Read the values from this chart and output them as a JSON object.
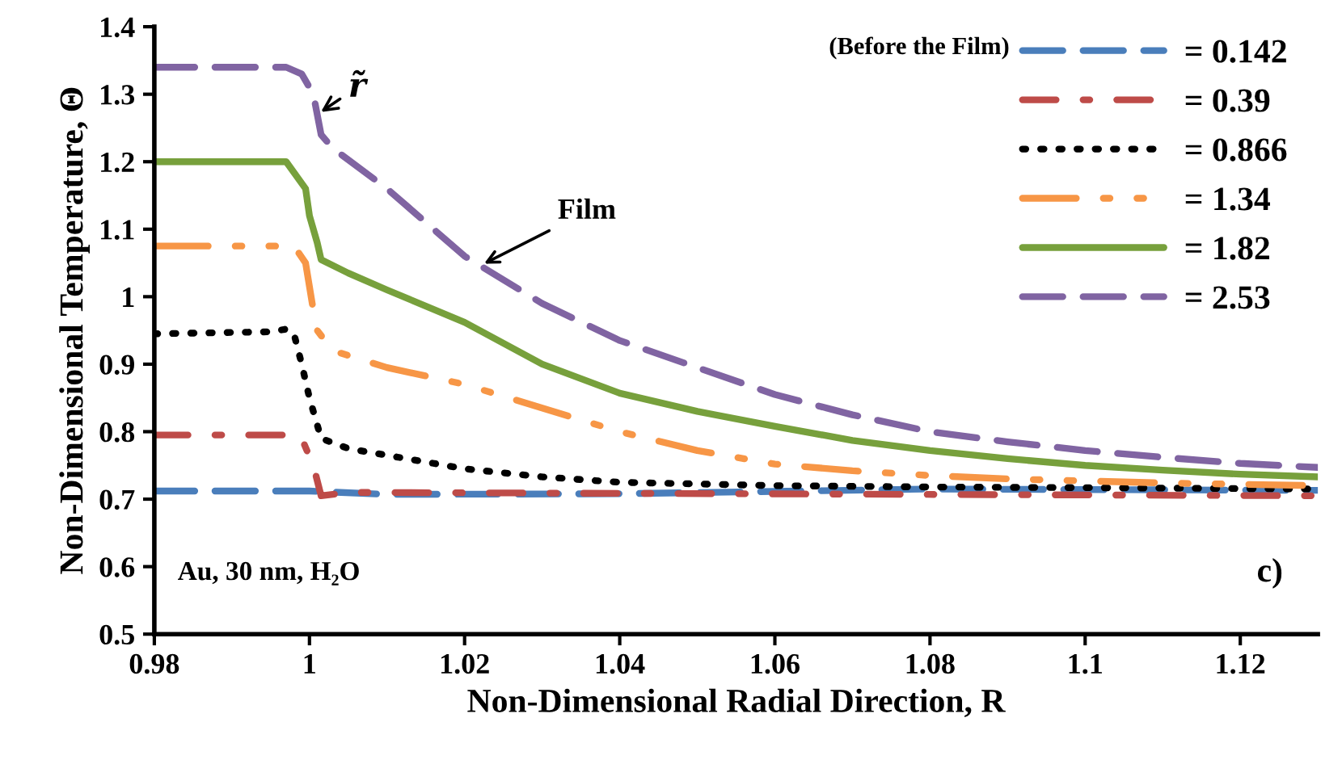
{
  "chart_data": {
    "type": "line",
    "xlabel": "Non-Dimensional Radial Direction, R",
    "ylabel": "Non-Dimensional Temperature, Θ",
    "xlim": [
      0.98,
      1.13
    ],
    "ylim": [
      0.5,
      1.4
    ],
    "xticks": [
      0.98,
      1,
      1.02,
      1.04,
      1.06,
      1.08,
      1.1,
      1.12
    ],
    "yticks": [
      0.5,
      0.6,
      0.7,
      0.8,
      0.9,
      1,
      1.1,
      1.2,
      1.3,
      1.4
    ],
    "grid": false,
    "legend": "top right",
    "legend_title": "(Before the Film)",
    "annotations": [
      {
        "text": "r̃",
        "x": 1.001,
        "y": 1.27
      },
      {
        "text": "Film",
        "x": 1.022,
        "y": 1.046
      },
      "Au, 30 nm, H₂O",
      "c)"
    ],
    "series": [
      {
        "name": "= 0.142",
        "color": "#4a7ebb",
        "line_style": "dashed",
        "x": [
          0.98,
          1.0,
          1.01,
          1.04,
          1.08,
          1.13
        ],
        "values": [
          0.712,
          0.712,
          0.707,
          0.708,
          0.715,
          0.713
        ]
      },
      {
        "name": "= 0.39",
        "color": "#be4b48",
        "line_style": "dashdot",
        "x": [
          0.98,
          0.998,
          0.999,
          1.0005,
          1.0015,
          1.005,
          1.13
        ],
        "values": [
          0.795,
          0.795,
          0.79,
          0.75,
          0.705,
          0.71,
          0.705
        ]
      },
      {
        "name": "= 0.866",
        "color": "#000000",
        "line_style": "dotted",
        "x": [
          0.98,
          0.995,
          0.997,
          0.998,
          0.999,
          1.0,
          1.0015,
          1.005,
          1.01,
          1.02,
          1.03,
          1.04,
          1.06,
          1.08,
          1.1,
          1.13
        ],
        "values": [
          0.945,
          0.948,
          0.952,
          0.945,
          0.9,
          0.85,
          0.79,
          0.775,
          0.765,
          0.745,
          0.733,
          0.725,
          0.72,
          0.718,
          0.717,
          0.715
        ]
      },
      {
        "name": "= 1.34",
        "color": "#f79646",
        "line_style": "dashdotdot",
        "x": [
          0.98,
          0.998,
          0.9995,
          1.0005,
          1.001,
          1.003,
          1.01,
          1.02,
          1.03,
          1.04,
          1.05,
          1.06,
          1.07,
          1.08,
          1.09,
          1.1,
          1.11,
          1.12,
          1.13
        ],
        "values": [
          1.075,
          1.075,
          1.05,
          0.98,
          0.95,
          0.92,
          0.895,
          0.87,
          0.835,
          0.8,
          0.772,
          0.752,
          0.742,
          0.735,
          0.73,
          0.727,
          0.724,
          0.722,
          0.72
        ]
      },
      {
        "name": "= 1.82",
        "color": "#77a03c",
        "line_style": "solid",
        "x": [
          0.98,
          0.997,
          0.9995,
          1.0,
          1.001,
          1.0015,
          1.005,
          1.01,
          1.02,
          1.03,
          1.04,
          1.05,
          1.06,
          1.07,
          1.08,
          1.09,
          1.1,
          1.11,
          1.12,
          1.13
        ],
        "values": [
          1.2,
          1.2,
          1.16,
          1.12,
          1.08,
          1.055,
          1.035,
          1.01,
          0.962,
          0.9,
          0.857,
          0.83,
          0.808,
          0.787,
          0.772,
          0.76,
          0.75,
          0.743,
          0.737,
          0.733
        ]
      },
      {
        "name": "= 2.53",
        "color": "#8064a2",
        "line_style": "dashed",
        "x": [
          0.98,
          0.997,
          0.999,
          1.0005,
          1.001,
          1.0015,
          1.003,
          1.01,
          1.02,
          1.03,
          1.04,
          1.05,
          1.06,
          1.07,
          1.08,
          1.09,
          1.1,
          1.11,
          1.12,
          1.13
        ],
        "values": [
          1.34,
          1.34,
          1.33,
          1.3,
          1.27,
          1.24,
          1.22,
          1.16,
          1.06,
          0.99,
          0.935,
          0.895,
          0.855,
          0.825,
          0.8,
          0.785,
          0.772,
          0.762,
          0.753,
          0.747
        ]
      }
    ]
  }
}
